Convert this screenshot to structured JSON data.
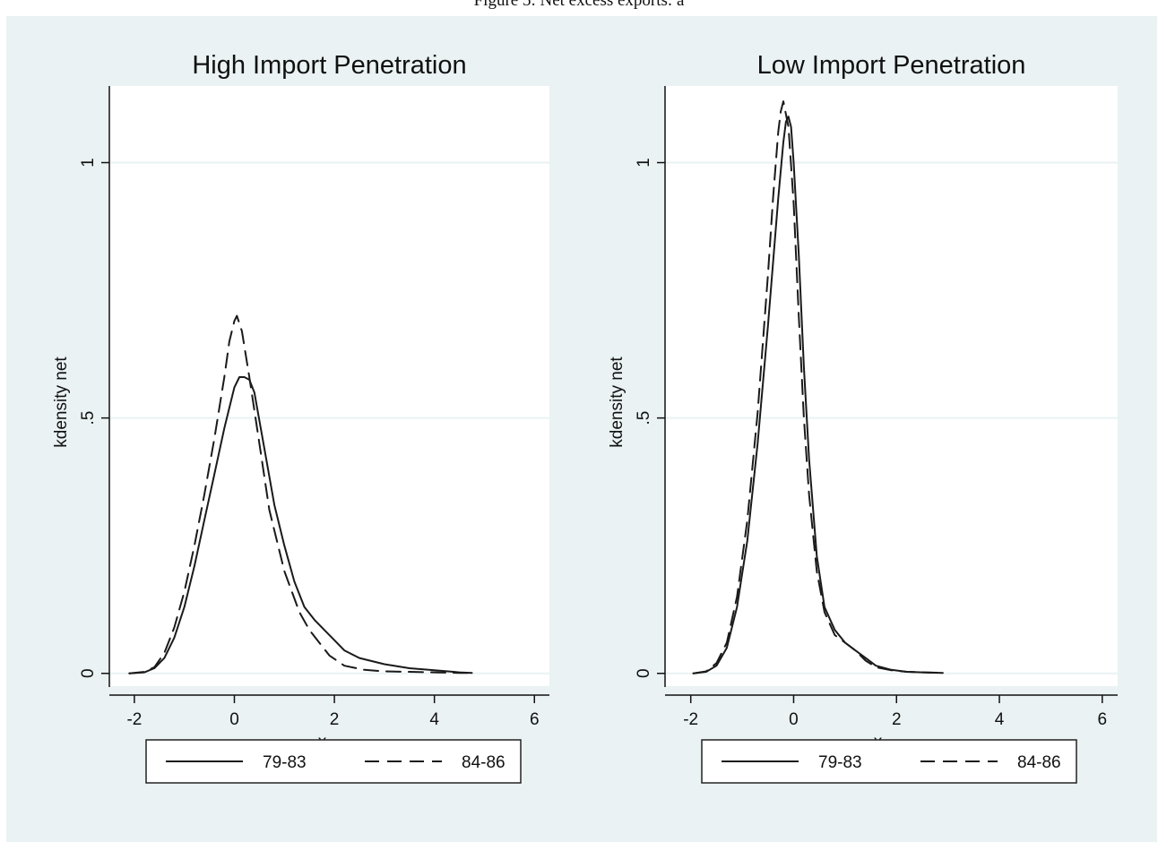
{
  "page": {
    "caption": "Figure 5: Net excess exports: a"
  },
  "chart_data": [
    {
      "type": "line",
      "title": "High Import Penetration",
      "xlabel": "x",
      "ylabel": "kdensity net",
      "xlim": [
        -2.5,
        6.3
      ],
      "ylim": [
        -0.025,
        1.15
      ],
      "xticks": [
        -2,
        0,
        2,
        4,
        6
      ],
      "yticks": [
        0,
        0.5,
        1
      ],
      "ytick_labels": [
        "0",
        ".5",
        "1"
      ],
      "grid": true,
      "legend": "bottom",
      "series": [
        {
          "name": "79-83",
          "style": "solid",
          "x": [
            -2.1,
            -1.8,
            -1.6,
            -1.4,
            -1.2,
            -1.0,
            -0.8,
            -0.6,
            -0.4,
            -0.2,
            0.0,
            0.1,
            0.2,
            0.3,
            0.4,
            0.6,
            0.8,
            1.0,
            1.2,
            1.4,
            1.6,
            1.8,
            2.0,
            2.2,
            2.5,
            3.0,
            3.5,
            4.0,
            4.5,
            4.75
          ],
          "y": [
            0.0,
            0.002,
            0.01,
            0.03,
            0.07,
            0.13,
            0.21,
            0.3,
            0.39,
            0.48,
            0.56,
            0.58,
            0.58,
            0.575,
            0.55,
            0.44,
            0.33,
            0.25,
            0.18,
            0.13,
            0.105,
            0.085,
            0.065,
            0.045,
            0.03,
            0.018,
            0.01,
            0.006,
            0.002,
            0.001
          ]
        },
        {
          "name": "84-86",
          "style": "dashed",
          "x": [
            -2.1,
            -1.8,
            -1.6,
            -1.4,
            -1.2,
            -1.0,
            -0.8,
            -0.6,
            -0.4,
            -0.2,
            -0.1,
            0.0,
            0.05,
            0.15,
            0.3,
            0.5,
            0.7,
            1.0,
            1.3,
            1.5,
            1.7,
            1.9,
            2.2,
            2.6,
            3.0,
            3.5,
            4.0,
            4.5,
            4.75
          ],
          "y": [
            0.0,
            0.003,
            0.012,
            0.04,
            0.09,
            0.16,
            0.25,
            0.35,
            0.46,
            0.58,
            0.65,
            0.69,
            0.7,
            0.67,
            0.58,
            0.45,
            0.32,
            0.2,
            0.12,
            0.085,
            0.06,
            0.035,
            0.015,
            0.007,
            0.004,
            0.003,
            0.002,
            0.001,
            0.001
          ]
        }
      ]
    },
    {
      "type": "line",
      "title": "Low  Import Penetration",
      "xlabel": "x",
      "ylabel": "kdensity net",
      "xlim": [
        -2.5,
        6.3
      ],
      "ylim": [
        -0.025,
        1.15
      ],
      "xticks": [
        -2,
        0,
        2,
        4,
        6
      ],
      "yticks": [
        0,
        0.5,
        1
      ],
      "ytick_labels": [
        "0",
        ".5",
        "1"
      ],
      "grid": true,
      "legend": "bottom",
      "series": [
        {
          "name": "79-83",
          "style": "solid",
          "x": [
            -1.95,
            -1.7,
            -1.5,
            -1.3,
            -1.1,
            -0.9,
            -0.7,
            -0.5,
            -0.3,
            -0.2,
            -0.15,
            -0.1,
            -0.05,
            0.0,
            0.1,
            0.2,
            0.3,
            0.45,
            0.6,
            0.8,
            1.0,
            1.2,
            1.4,
            1.6,
            1.9,
            2.2,
            2.5,
            2.9
          ],
          "y": [
            0.0,
            0.003,
            0.015,
            0.05,
            0.13,
            0.26,
            0.45,
            0.68,
            0.93,
            1.04,
            1.08,
            1.09,
            1.07,
            1.0,
            0.82,
            0.6,
            0.42,
            0.23,
            0.13,
            0.085,
            0.06,
            0.045,
            0.03,
            0.015,
            0.007,
            0.003,
            0.002,
            0.001
          ]
        },
        {
          "name": "84-86",
          "style": "dashed",
          "x": [
            -1.95,
            -1.7,
            -1.5,
            -1.3,
            -1.1,
            -0.9,
            -0.7,
            -0.5,
            -0.4,
            -0.3,
            -0.25,
            -0.2,
            -0.1,
            0.0,
            0.1,
            0.2,
            0.3,
            0.45,
            0.6,
            0.8,
            1.0,
            1.2,
            1.4,
            1.6,
            1.9,
            2.2,
            2.5,
            2.9
          ],
          "y": [
            0.0,
            0.004,
            0.02,
            0.06,
            0.15,
            0.3,
            0.51,
            0.78,
            0.93,
            1.06,
            1.1,
            1.12,
            1.07,
            0.92,
            0.7,
            0.5,
            0.35,
            0.2,
            0.12,
            0.075,
            0.06,
            0.045,
            0.025,
            0.012,
            0.006,
            0.003,
            0.002,
            0.001
          ]
        }
      ]
    }
  ]
}
